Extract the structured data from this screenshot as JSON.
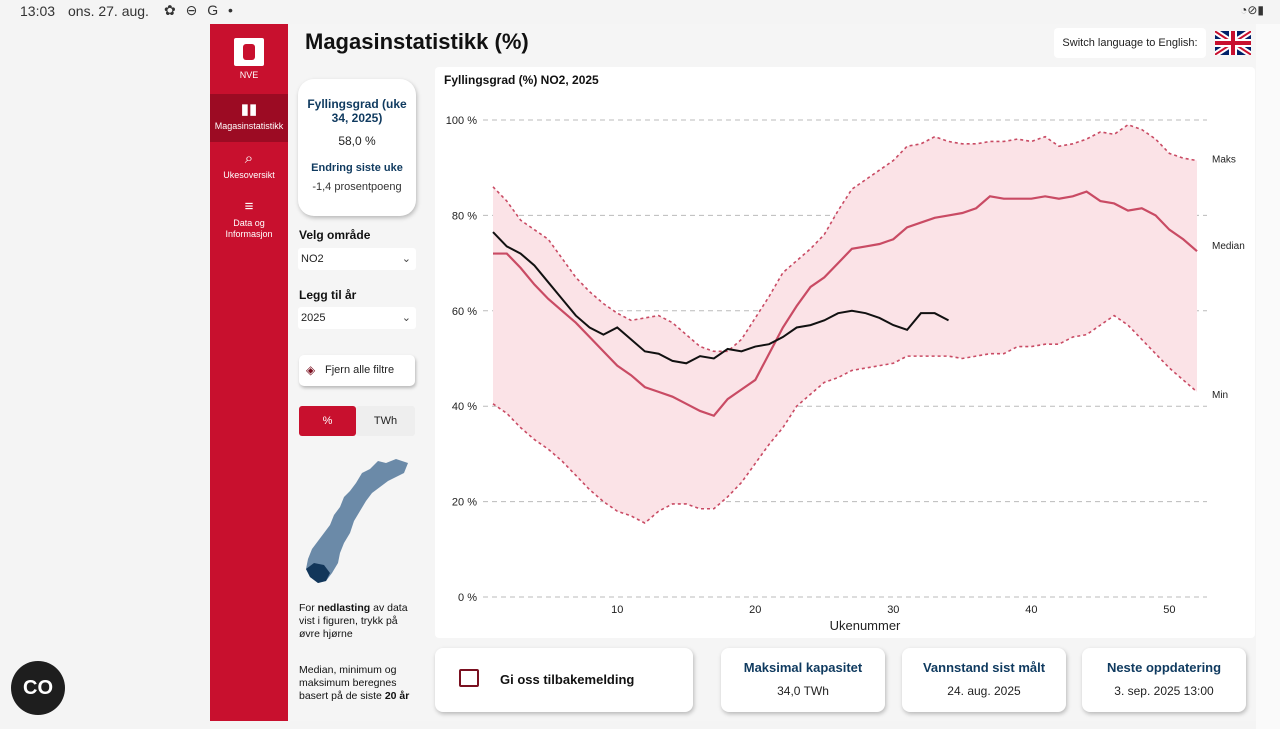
{
  "statusbar": {
    "time": "13:03",
    "date": "ons. 27. aug.",
    "icons": "✿ ⊖ G •",
    "right_icons": "◔⊘▮"
  },
  "sidebar": {
    "logo_text": "NVE",
    "items": [
      {
        "label": "Magasinstatistikk",
        "icon": "bar-chart-icon"
      },
      {
        "label": "Ukesoversikt",
        "icon": "search-chart-icon"
      },
      {
        "label": "Data og Informasjon",
        "icon": "database-icon"
      }
    ]
  },
  "header": {
    "title": "Magasinstatistikk (%)",
    "lang_button": "Switch language to English:"
  },
  "fill_card": {
    "heading": "Fyllingsgrad (uke 34, 2025)",
    "value": "58,0 %",
    "change_heading": "Endring siste uke",
    "change_value": "-1,4 prosentpoeng"
  },
  "filters": {
    "area_label": "Velg område",
    "area_value": "NO2",
    "year_label": "Legg til år",
    "year_value": "2025",
    "clear_label": "Fjern alle filtre",
    "unit_pct": "%",
    "unit_twh": "TWh"
  },
  "notes": {
    "download_pre": "For ",
    "download_bold": "nedlasting",
    "download_post": " av data vist i figuren, trykk på øvre hjørne",
    "basis_pre": "Median, minimum og maksimum beregnes basert på de siste ",
    "basis_bold": "20 år"
  },
  "bottom": {
    "feedback": "Gi oss tilbakemelding",
    "capacity_title": "Maksimal kapasitet",
    "capacity_value": "34,0 TWh",
    "measured_title": "Vannstand sist målt",
    "measured_value": "24. aug. 2025",
    "next_title": "Neste oppdatering",
    "next_value": "3. sep. 2025 13:00"
  },
  "colors": {
    "brand": "#c8102e",
    "band": "#fbe3e7",
    "median": "#c94b64",
    "current": "#111111"
  },
  "chart_data": {
    "type": "line",
    "title": "Fyllingsgrad (%) NO2, 2025",
    "xlabel": "Ukenummer",
    "ylabel": "",
    "xlim": [
      1,
      52
    ],
    "ylim": [
      0,
      100
    ],
    "x_ticks": [
      10,
      20,
      30,
      40,
      50
    ],
    "y_ticks": [
      0,
      20,
      40,
      60,
      80,
      100
    ],
    "y_tick_labels": [
      "0 %",
      "20 %",
      "40 %",
      "60 %",
      "80 %",
      "100 %"
    ],
    "grid": true,
    "series": [
      {
        "name": "Maks",
        "style": "dashed",
        "x": [
          1,
          2,
          3,
          4,
          5,
          6,
          7,
          8,
          9,
          10,
          11,
          12,
          13,
          14,
          15,
          16,
          17,
          18,
          19,
          20,
          21,
          22,
          23,
          24,
          25,
          26,
          27,
          28,
          29,
          30,
          31,
          32,
          33,
          34,
          35,
          36,
          37,
          38,
          39,
          40,
          41,
          42,
          43,
          44,
          45,
          46,
          47,
          48,
          49,
          50,
          51,
          52
        ],
        "values": [
          86,
          83,
          79,
          77,
          75,
          71,
          67,
          64,
          61.5,
          59.5,
          58,
          58.5,
          59,
          57.5,
          55,
          52.5,
          51.5,
          51.5,
          54,
          58.5,
          63,
          68,
          70.5,
          73,
          76,
          81,
          85.5,
          87.5,
          89.5,
          91.5,
          94.5,
          95,
          96.5,
          95.5,
          95,
          95,
          95.5,
          95.5,
          96,
          95.5,
          96.5,
          94.5,
          95,
          96,
          97.5,
          97,
          99,
          98,
          96,
          93,
          92,
          91.5
        ]
      },
      {
        "name": "Median",
        "style": "solid",
        "x": [
          1,
          2,
          3,
          4,
          5,
          6,
          7,
          8,
          9,
          10,
          11,
          12,
          13,
          14,
          15,
          16,
          17,
          18,
          19,
          20,
          21,
          22,
          23,
          24,
          25,
          26,
          27,
          28,
          29,
          30,
          31,
          32,
          33,
          34,
          35,
          36,
          37,
          38,
          39,
          40,
          41,
          42,
          43,
          44,
          45,
          46,
          47,
          48,
          49,
          50,
          51,
          52
        ],
        "values": [
          72,
          72,
          69,
          65.5,
          62.5,
          60,
          57.5,
          54.5,
          51.5,
          48.5,
          46.5,
          44,
          43,
          42,
          40.5,
          39,
          38,
          41.5,
          43.5,
          45.5,
          51,
          56.5,
          61,
          65,
          67,
          70,
          73,
          73.5,
          74,
          75,
          77.5,
          78.5,
          79.5,
          80,
          80.5,
          81.5,
          84,
          83.5,
          83.5,
          83.5,
          84,
          83.5,
          84,
          85,
          83,
          82.5,
          81,
          81.5,
          80,
          77,
          75,
          72.5
        ]
      },
      {
        "name": "Min",
        "style": "dashed",
        "x": [
          1,
          2,
          3,
          4,
          5,
          6,
          7,
          8,
          9,
          10,
          11,
          12,
          13,
          14,
          15,
          16,
          17,
          18,
          19,
          20,
          21,
          22,
          23,
          24,
          25,
          26,
          27,
          28,
          29,
          30,
          31,
          32,
          33,
          34,
          35,
          36,
          37,
          38,
          39,
          40,
          41,
          42,
          43,
          44,
          45,
          46,
          47,
          48,
          49,
          50,
          51,
          52
        ],
        "values": [
          40.5,
          38.5,
          35.5,
          33,
          31,
          28.5,
          25.5,
          22.5,
          20,
          18,
          17,
          15.5,
          18,
          19.5,
          19.5,
          18.5,
          18.5,
          21,
          24,
          28,
          32,
          35.5,
          40,
          42.5,
          45,
          46,
          47.5,
          48,
          48.5,
          49,
          50.5,
          50.5,
          50.5,
          50.5,
          50,
          50.5,
          51,
          51,
          52.5,
          52.5,
          53,
          53,
          54.5,
          55,
          57,
          59,
          57,
          54,
          51,
          48,
          45.5,
          43
        ]
      },
      {
        "name": "2025",
        "style": "solid",
        "x": [
          1,
          2,
          3,
          4,
          5,
          6,
          7,
          8,
          9,
          10,
          11,
          12,
          13,
          14,
          15,
          16,
          17,
          18,
          19,
          20,
          21,
          22,
          23,
          24,
          25,
          26,
          27,
          28,
          29,
          30,
          31,
          32,
          33,
          34
        ],
        "values": [
          76.5,
          73.5,
          72,
          69.5,
          66,
          62.5,
          59,
          56.5,
          55,
          56.5,
          54,
          51.5,
          51,
          49.5,
          49,
          50.5,
          50,
          52,
          51.5,
          52.5,
          53,
          54.5,
          56.5,
          57,
          58,
          59.5,
          60,
          59.5,
          58.5,
          57,
          56,
          59.5,
          59.5,
          58
        ]
      }
    ],
    "end_labels": [
      "Maks",
      "Median",
      "Min"
    ]
  }
}
